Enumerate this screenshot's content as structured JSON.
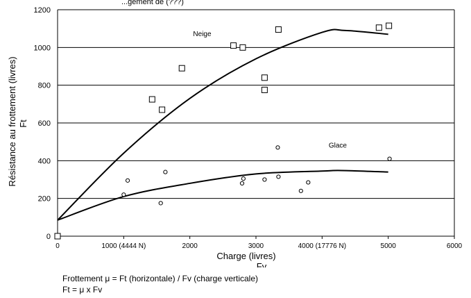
{
  "chart_data": {
    "type": "scatter",
    "title_partial": "...gement de (???)",
    "xlabel": "Charge (livres)",
    "xlabel_symbol": "Fv",
    "ylabel": "Résistance au frottement (livres)",
    "ylabel_symbol": "Ft",
    "xlim": [
      0,
      6000
    ],
    "ylim": [
      0,
      1200
    ],
    "x_ticks": [
      {
        "value": 0,
        "label": "0"
      },
      {
        "value": 1000,
        "label": "1000 (4444 N)"
      },
      {
        "value": 2000,
        "label": "2000"
      },
      {
        "value": 3000,
        "label": "3000"
      },
      {
        "value": 4000,
        "label": "4000 (17776 N)"
      },
      {
        "value": 5000,
        "label": "5000"
      },
      {
        "value": 6000,
        "label": "6000"
      }
    ],
    "y_ticks": [
      0,
      200,
      400,
      600,
      800,
      1000,
      1200
    ],
    "grid": "horizontal",
    "series": [
      {
        "name": "Neige",
        "marker": "square",
        "points": [
          [
            0,
            0
          ],
          [
            1430,
            725
          ],
          [
            1580,
            670
          ],
          [
            1880,
            890
          ],
          [
            2660,
            1010
          ],
          [
            2800,
            1000
          ],
          [
            3130,
            840
          ],
          [
            3130,
            775
          ],
          [
            3340,
            1095
          ],
          [
            4860,
            1105
          ],
          [
            5010,
            1115
          ]
        ],
        "curve": [
          [
            0,
            85
          ],
          [
            1000,
            440
          ],
          [
            2000,
            730
          ],
          [
            3000,
            940
          ],
          [
            4000,
            1080
          ],
          [
            4350,
            1090
          ],
          [
            5000,
            1070
          ]
        ]
      },
      {
        "name": "Glace",
        "marker": "circle",
        "points": [
          [
            1000,
            220
          ],
          [
            1060,
            295
          ],
          [
            1560,
            175
          ],
          [
            1630,
            340
          ],
          [
            2790,
            280
          ],
          [
            2810,
            305
          ],
          [
            3130,
            300
          ],
          [
            3330,
            470
          ],
          [
            3340,
            315
          ],
          [
            3680,
            240
          ],
          [
            3790,
            285
          ],
          [
            5020,
            410
          ]
        ],
        "curve": [
          [
            0,
            85
          ],
          [
            1000,
            210
          ],
          [
            2000,
            280
          ],
          [
            3000,
            330
          ],
          [
            4000,
            345
          ],
          [
            4300,
            348
          ],
          [
            5000,
            340
          ]
        ]
      }
    ]
  },
  "notes": {
    "line1": "Frottement  μ = Ft (horizontale) / Fv (charge verticale)",
    "line2": "Ft = μ x Fv"
  }
}
